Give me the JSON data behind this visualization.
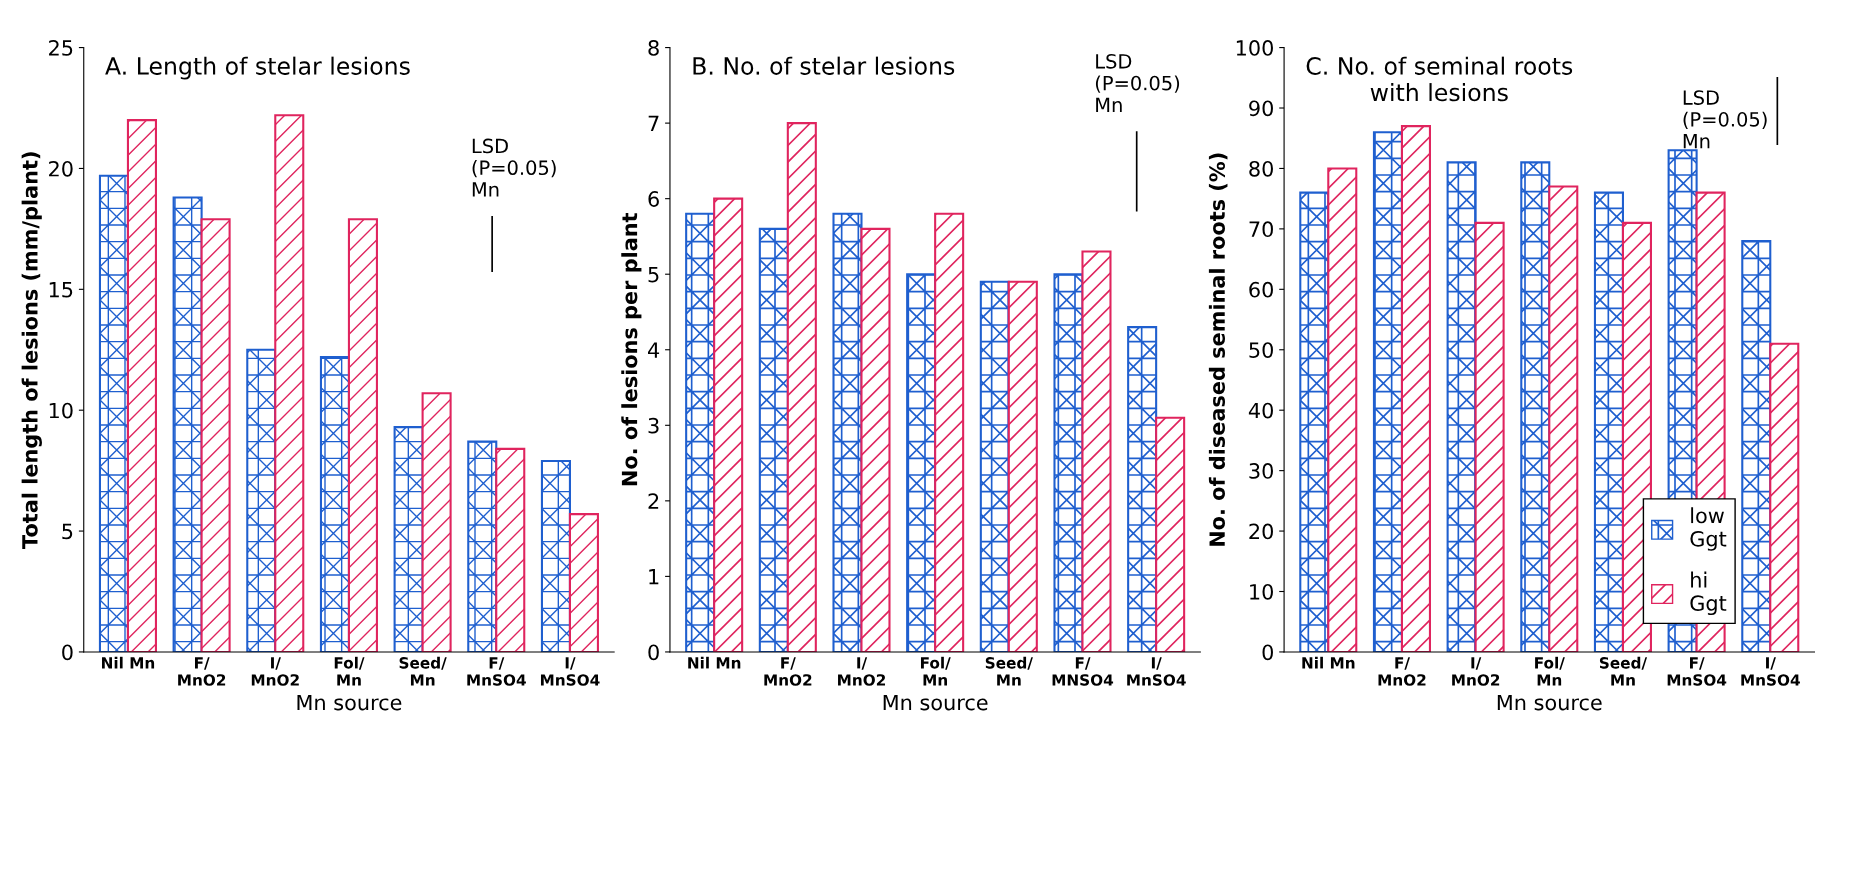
{
  "chart_data": [
    {
      "type": "bar",
      "title": "A. Length of stelar lesions",
      "xlabel": "Mn source",
      "ylabel": "Total length of lesions (mm/plant)",
      "categories": [
        "Nil Mn",
        "F/\nMnO2",
        "I/\nMnO2",
        "Fol/\nMn",
        "Seed/\nMn",
        "F/\nMnSO4",
        "I/\nMnSO4"
      ],
      "series": [
        {
          "color": "#1f5fcf",
          "values": [
            19.7,
            18.8,
            12.5,
            12.2,
            9.3,
            8.7,
            7.9
          ]
        },
        {
          "color": "#e0245e",
          "values": [
            22.0,
            17.9,
            22.2,
            17.9,
            10.7,
            8.4,
            5.7
          ]
        }
      ],
      "ylim": [
        0,
        25
      ],
      "yticks": [
        0,
        5,
        10,
        15,
        20,
        25
      ],
      "grid": false,
      "legend": false,
      "annotations": [
        "LSD\n(P=0.05)\nMn"
      ]
    },
    {
      "type": "bar",
      "title": "B. No. of stelar lesions",
      "xlabel": "Mn source",
      "ylabel": "No. of lesions per plant",
      "categories": [
        "Nil Mn",
        "F/\nMnO2",
        "I/\nMnO2",
        "Fol/\nMn",
        "Seed/\nMn",
        "F/\nMNSO4",
        "I/\nMnSO4"
      ],
      "series": [
        {
          "color": "#1f5fcf",
          "values": [
            5.8,
            5.6,
            5.8,
            5.0,
            4.9,
            5.0,
            4.3
          ]
        },
        {
          "color": "#e0245e",
          "values": [
            6.0,
            7.0,
            5.6,
            5.8,
            4.9,
            5.3,
            3.1
          ]
        }
      ],
      "ylim": [
        0,
        8
      ],
      "yticks": [
        0,
        1,
        2,
        3,
        4,
        5,
        6,
        7,
        8
      ],
      "grid": false,
      "legend": false,
      "annotations": [
        "LSD\n(P=0.05)\nMn"
      ]
    },
    {
      "type": "bar",
      "title": "C. No. of seminal roots\nwith lesions",
      "xlabel": "Mn source",
      "ylabel": "No. of diseased seminal roots (%)",
      "categories": [
        "Nil Mn",
        "F/\nMnO2",
        "I/\nMnO2",
        "Fol/\nMn",
        "Seed/\nMn",
        "F/\nMnSO4",
        "I/\nMnSO4"
      ],
      "series": [
        {
          "name": "low\nGgt",
          "color": "#1f5fcf",
          "values": [
            76,
            86,
            81,
            81,
            76,
            83,
            68
          ]
        },
        {
          "name": "hi\nGgt",
          "color": "#e0245e",
          "values": [
            80,
            87,
            71,
            77,
            71,
            76,
            51
          ]
        }
      ],
      "ylim": [
        0,
        100
      ],
      "yticks": [
        0,
        10,
        20,
        30,
        40,
        50,
        60,
        70,
        80,
        90,
        100
      ],
      "grid": false,
      "legend": "bottom right",
      "annotations": [
        "LSD\n(P=0.05)\nMn"
      ]
    }
  ]
}
